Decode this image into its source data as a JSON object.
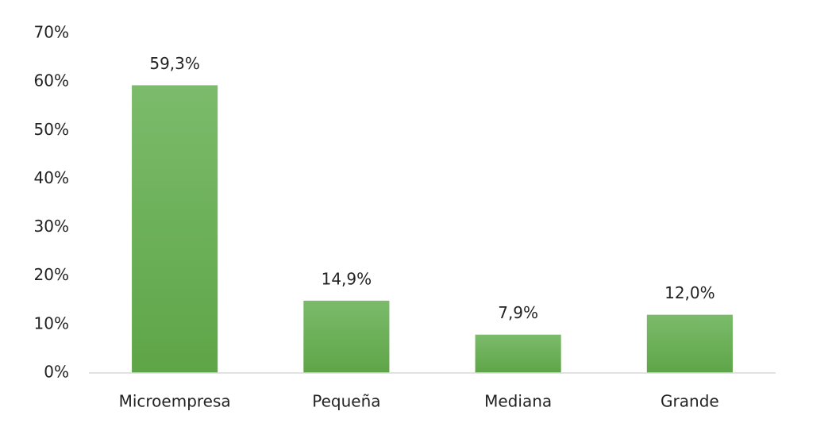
{
  "chart_data": {
    "type": "bar",
    "categories": [
      "Microempresa",
      "Pequeña",
      "Mediana",
      "Grande"
    ],
    "values": [
      59.3,
      14.9,
      7.9,
      12.0
    ],
    "value_labels": [
      "59,3%",
      "14,9%",
      "7,9%",
      "12,0%"
    ],
    "color": "#6ab155",
    "ylim": [
      0,
      70
    ],
    "yticks": [
      {
        "value": 0,
        "label": "0%"
      },
      {
        "value": 10,
        "label": "10%"
      },
      {
        "value": 20,
        "label": "20%"
      },
      {
        "value": 30,
        "label": "30%"
      },
      {
        "value": 40,
        "label": "40%"
      },
      {
        "value": 50,
        "label": "50%"
      },
      {
        "value": 60,
        "label": "60%"
      },
      {
        "value": 70,
        "label": "70%"
      }
    ],
    "grid": false
  }
}
